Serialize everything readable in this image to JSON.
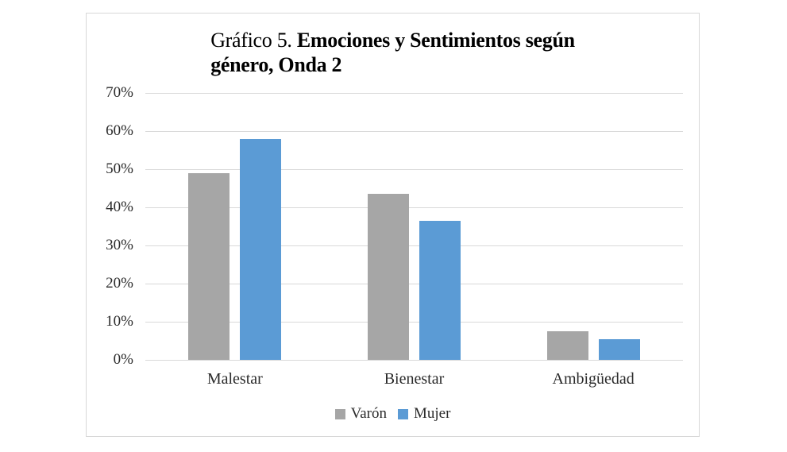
{
  "title": {
    "prefix": "Gráfico 5. ",
    "line1_bold": "Emociones y Sentimientos según",
    "line2_bold": "género, Onda 2",
    "full": "Gráfico 5. Emociones y Sentimientos según género, Onda 2"
  },
  "chart_data": {
    "type": "bar",
    "title": "Gráfico 5. Emociones y Sentimientos según género, Onda 2",
    "categories": [
      "Malestar",
      "Bienestar",
      "Ambigüedad"
    ],
    "series": [
      {
        "name": "Varón",
        "color": "#A6A6A6",
        "values": [
          49,
          43.5,
          7.5
        ]
      },
      {
        "name": "Mujer",
        "color": "#5B9BD5",
        "values": [
          58,
          36.5,
          5.5
        ]
      }
    ],
    "xlabel": "",
    "ylabel": "",
    "ylim": [
      0,
      70
    ],
    "ytick_step": 10,
    "yticks": [
      "0%",
      "10%",
      "20%",
      "30%",
      "40%",
      "50%",
      "60%",
      "70%"
    ],
    "grid": true,
    "legend_position": "bottom",
    "colors": {
      "gridline": "#D9D9D9",
      "axis_line": "#D9D9D9",
      "chart_border": "#D8D8D8",
      "background": "#FFFFFF",
      "text": "#2B2B2B",
      "title_text": "#000000"
    }
  }
}
